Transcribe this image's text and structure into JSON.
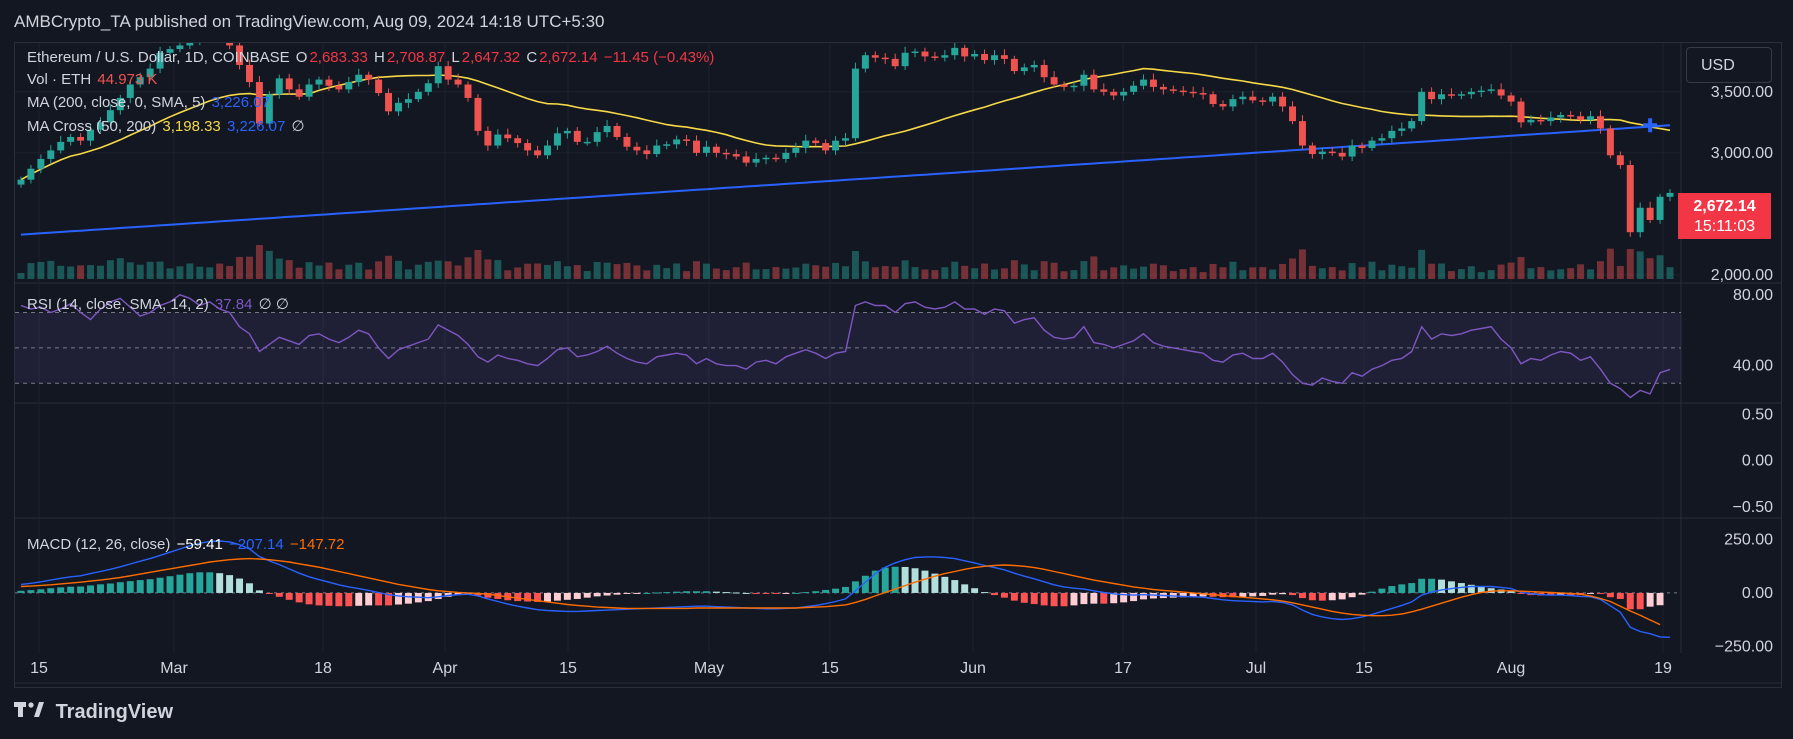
{
  "header": {
    "published": "AMBCrypto_TA published on TradingView.com, Aug 09, 2024 14:18 UTC+5:30"
  },
  "legend": {
    "symbol": "Ethereum / U.S. Dollar, 1D, COINBASE",
    "o_key": "O",
    "o_val": "2,683.33",
    "h_key": "H",
    "h_val": "2,708.87",
    "l_key": "L",
    "l_val": "2,647.32",
    "c_key": "C",
    "c_val": "2,672.14",
    "change": "−11.45 (−0.43%)",
    "vol_label": "Vol · ETH",
    "vol_val": "44.973 K",
    "ma_label": "MA (200, close, 0, SMA, 5)",
    "ma_val": "3,226.07",
    "cross_label": "MA Cross (50, 200)",
    "cross_val1": "3,198.33",
    "cross_val2": "3,226.07",
    "cross_extra": "∅",
    "rsi_label": "RSI (14, close, SMA, 14, 2)",
    "rsi_val": "37.84",
    "rsi_extra": "∅ ∅",
    "macd_label": "MACD (12, 26, close)",
    "macd_val1": "−59.41",
    "macd_val2": "−207.14",
    "macd_val3": "−147.72"
  },
  "currency_button": "USD",
  "price_badge": {
    "price": "2,672.14",
    "countdown": "15:11:03"
  },
  "brand": "TradingView",
  "colors": {
    "up": "#26a69a",
    "down": "#ef5350",
    "ma50": "#f5d948",
    "ma200": "#2962ff",
    "rsi": "#7e57c2",
    "macd": "#2962ff",
    "signal": "#ff6d00",
    "bg": "#131722",
    "grid": "#1e222d"
  },
  "chart_data": [
    {
      "type": "candlestick",
      "title": "Ethereum / U.S. Dollar, 1D, COINBASE",
      "x_tick_labels": [
        "15",
        "Mar",
        "18",
        "Apr",
        "15",
        "May",
        "15",
        "Jun",
        "17",
        "Jul",
        "15",
        "Aug",
        "19"
      ],
      "y_tick_labels": [
        "3,500.00",
        "3,000.00",
        "2,000.00"
      ],
      "ylim": [
        1950,
        3900
      ],
      "close": [
        2780,
        2870,
        2950,
        3020,
        3090,
        3130,
        3100,
        3190,
        3250,
        3350,
        3450,
        3560,
        3620,
        3690,
        3820,
        3850,
        3880,
        3920,
        3980,
        4010,
        3960,
        3880,
        3720,
        3580,
        3240,
        3480,
        3610,
        3520,
        3460,
        3560,
        3600,
        3550,
        3520,
        3580,
        3640,
        3600,
        3490,
        3340,
        3410,
        3440,
        3500,
        3570,
        3710,
        3600,
        3560,
        3450,
        3180,
        3060,
        3150,
        3120,
        3080,
        3020,
        2980,
        3060,
        3160,
        3180,
        3090,
        3090,
        3170,
        3220,
        3130,
        3050,
        3020,
        2990,
        3060,
        3070,
        3110,
        3100,
        3000,
        3050,
        3000,
        2990,
        2970,
        2920,
        2950,
        2960,
        2950,
        3000,
        3040,
        3100,
        3080,
        3020,
        3100,
        3120,
        3690,
        3800,
        3780,
        3770,
        3710,
        3820,
        3830,
        3790,
        3780,
        3800,
        3860,
        3790,
        3810,
        3760,
        3800,
        3770,
        3670,
        3700,
        3720,
        3620,
        3560,
        3540,
        3550,
        3640,
        3520,
        3500,
        3470,
        3500,
        3550,
        3600,
        3540,
        3520,
        3510,
        3500,
        3490,
        3480,
        3400,
        3380,
        3440,
        3460,
        3430,
        3420,
        3460,
        3380,
        3260,
        3060,
        2990,
        3010,
        3000,
        2970,
        3060,
        3040,
        3100,
        3120,
        3180,
        3200,
        3260,
        3500,
        3440,
        3480,
        3470,
        3480,
        3500,
        3510,
        3520,
        3470,
        3420,
        3250,
        3270,
        3260,
        3290,
        3310,
        3300,
        3270,
        3300,
        3200,
        2980,
        2900,
        2350,
        2550,
        2450,
        2640,
        2672
      ],
      "volume_unit": "K ETH"
    },
    {
      "type": "line",
      "title": "RSI (14, close, SMA, 14, 2)",
      "y_tick_labels": [
        "80.00",
        "40.00"
      ],
      "ylim": [
        20,
        85
      ],
      "series": [
        {
          "name": "RSI",
          "values": [
            74,
            72,
            73,
            70,
            72,
            75,
            70,
            66,
            72,
            76,
            78,
            73,
            68,
            70,
            74,
            76,
            80,
            78,
            74,
            76,
            72,
            70,
            62,
            58,
            48,
            52,
            56,
            54,
            52,
            57,
            58,
            55,
            53,
            56,
            60,
            58,
            50,
            44,
            49,
            51,
            53,
            55,
            63,
            60,
            57,
            52,
            45,
            42,
            46,
            44,
            43,
            41,
            40,
            44,
            49,
            50,
            45,
            46,
            48,
            51,
            47,
            44,
            42,
            41,
            45,
            46,
            47,
            46,
            41,
            44,
            41,
            40,
            40,
            38,
            42,
            43,
            41,
            45,
            47,
            49,
            47,
            44,
            47,
            48,
            74,
            76,
            74,
            74,
            70,
            75,
            76,
            73,
            72,
            73,
            76,
            72,
            72,
            69,
            72,
            71,
            64,
            66,
            67,
            60,
            56,
            55,
            56,
            62,
            53,
            52,
            50,
            52,
            54,
            58,
            53,
            51,
            50,
            49,
            48,
            47,
            43,
            42,
            46,
            47,
            44,
            44,
            47,
            42,
            35,
            30,
            29,
            33,
            31,
            30,
            36,
            34,
            38,
            40,
            43,
            44,
            48,
            62,
            55,
            58,
            57,
            58,
            60,
            61,
            62,
            55,
            50,
            41,
            44,
            43,
            46,
            48,
            47,
            43,
            45,
            38,
            30,
            27,
            22,
            26,
            24,
            36,
            37.84
          ]
        }
      ]
    },
    {
      "type": "line",
      "title": "",
      "y_tick_labels": [
        "0.50",
        "0.00",
        "−0.50"
      ],
      "ylim": [
        -0.6,
        0.6
      ],
      "series": []
    },
    {
      "type": "line",
      "title": "MACD (12, 26, close)",
      "y_tick_labels": [
        "250.00",
        "0.00",
        "−250.00"
      ],
      "ylim": [
        -280,
        340
      ],
      "series": [
        {
          "name": "MACD",
          "values": [
            40,
            45,
            52,
            60,
            68,
            75,
            80,
            90,
            100,
            110,
            122,
            135,
            148,
            160,
            175,
            190,
            205,
            220,
            232,
            240,
            242,
            238,
            225,
            205,
            170,
            150,
            132,
            112,
            92,
            75,
            62,
            50,
            38,
            28,
            20,
            12,
            2,
            -8,
            -14,
            -18,
            -20,
            -22,
            -18,
            -12,
            -8,
            -6,
            -14,
            -28,
            -40,
            -52,
            -62,
            -70,
            -78,
            -82,
            -84,
            -86,
            -86,
            -84,
            -82,
            -80,
            -78,
            -76,
            -74,
            -72,
            -70,
            -68,
            -66,
            -64,
            -62,
            -62,
            -64,
            -66,
            -68,
            -70,
            -72,
            -74,
            -74,
            -72,
            -70,
            -64,
            -58,
            -50,
            -40,
            -28,
            10,
            50,
            90,
            120,
            140,
            155,
            165,
            168,
            168,
            165,
            160,
            150,
            140,
            128,
            118,
            108,
            92,
            78,
            66,
            52,
            38,
            28,
            22,
            18,
            10,
            2,
            -4,
            -8,
            -10,
            -8,
            -10,
            -12,
            -14,
            -16,
            -18,
            -20,
            -26,
            -32,
            -36,
            -38,
            -40,
            -42,
            -40,
            -44,
            -56,
            -80,
            -100,
            -112,
            -120,
            -124,
            -120,
            -112,
            -100,
            -86,
            -72,
            -58,
            -42,
            -10,
            4,
            14,
            20,
            26,
            30,
            30,
            30,
            26,
            20,
            4,
            -4,
            -8,
            -10,
            -10,
            -12,
            -16,
            -18,
            -30,
            -60,
            -90,
            -160,
            -180,
            -190,
            -205,
            -207
          ]
        },
        {
          "name": "Signal",
          "values": [
            30,
            32,
            35,
            38,
            42,
            46,
            50,
            55,
            60,
            66,
            72,
            80,
            88,
            96,
            104,
            112,
            120,
            128,
            136,
            144,
            150,
            155,
            158,
            160,
            158,
            155,
            150,
            144,
            136,
            128,
            120,
            110,
            100,
            90,
            80,
            70,
            60,
            50,
            40,
            32,
            24,
            16,
            10,
            6,
            2,
            0,
            -2,
            -6,
            -12,
            -18,
            -24,
            -30,
            -36,
            -42,
            -48,
            -54,
            -58,
            -62,
            -66,
            -68,
            -70,
            -72,
            -72,
            -72,
            -72,
            -72,
            -72,
            -72,
            -70,
            -70,
            -70,
            -70,
            -70,
            -70,
            -70,
            -70,
            -70,
            -70,
            -70,
            -68,
            -66,
            -64,
            -60,
            -56,
            -44,
            -30,
            -14,
            2,
            18,
            34,
            50,
            64,
            78,
            90,
            100,
            110,
            118,
            124,
            128,
            130,
            128,
            124,
            118,
            110,
            100,
            90,
            80,
            70,
            60,
            52,
            44,
            36,
            28,
            22,
            16,
            12,
            8,
            4,
            0,
            -4,
            -8,
            -12,
            -16,
            -20,
            -24,
            -28,
            -32,
            -38,
            -46,
            -56,
            -66,
            -76,
            -86,
            -94,
            -100,
            -104,
            -106,
            -106,
            -104,
            -98,
            -88,
            -76,
            -62,
            -48,
            -34,
            -20,
            -8,
            2,
            8,
            10,
            10,
            8,
            6,
            4,
            2,
            0,
            -2,
            -6,
            -14,
            -26,
            -40,
            -62,
            -84,
            -104,
            -126,
            -147.72
          ]
        }
      ]
    }
  ]
}
